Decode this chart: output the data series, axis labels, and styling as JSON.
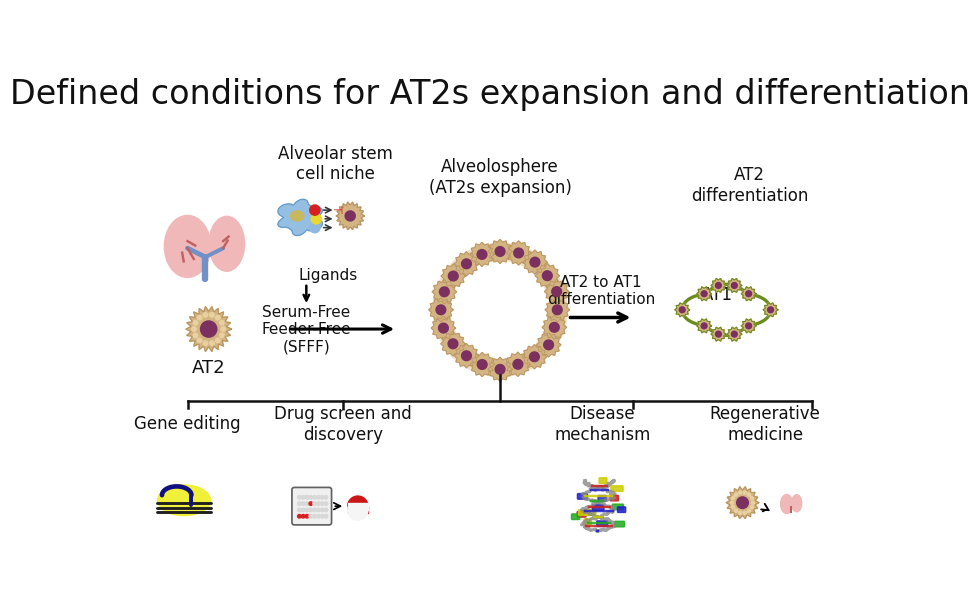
{
  "title": "Defined conditions for AT2s expansion and differentiation",
  "title_fontsize": 24,
  "background_color": "#ffffff",
  "text_color": "#111111",
  "labels": {
    "alveolar_stem": "Alveolar stem\ncell niche",
    "alveolosphere": "Alveolosphere\n(AT2s expansion)",
    "at2_diff": "AT2\ndifferentiation",
    "ligands": "Ligands",
    "sfff": "Serum-Free\nFeeder-Free\n(SFFF)",
    "at2": "AT2",
    "at1": "AT1",
    "at2_to_at1": "AT2 to AT1\ndifferentiation",
    "gene_editing": "Gene editing",
    "drug_screen": "Drug screen and\ndiscovery",
    "disease": "Disease\nmechanism",
    "regenerative": "Regenerative\nmedicine"
  },
  "lung_color": "#f0b8b8",
  "lung_dark": "#d08080",
  "lung_blue": "#7090c8",
  "at2_cell_color": "#d4b483",
  "at2_cell_dark": "#b89460",
  "at2_nucleus_color": "#7b3060",
  "at1_outline_color": "#6a8c1a",
  "fibroblast_color": "#7aaedb",
  "fibroblast_body": "#c8dff0",
  "fibroblast_nucleus": "#c8b860",
  "dot_blue": "#90b8e0",
  "dot_yellow": "#e8d830",
  "dot_red": "#d82020",
  "gene_yellow": "#f0f030",
  "gene_dark": "#101060",
  "pill_red": "#cc1515",
  "pill_white": "#f5f5f5",
  "dna_gray": "#888888",
  "dna_blue": "#2020cc",
  "dna_red": "#cc2020",
  "dna_green": "#20aa20",
  "dna_yellow": "#cccc00",
  "bottom_line_color": "#111111",
  "arrow_color": "#111111"
}
